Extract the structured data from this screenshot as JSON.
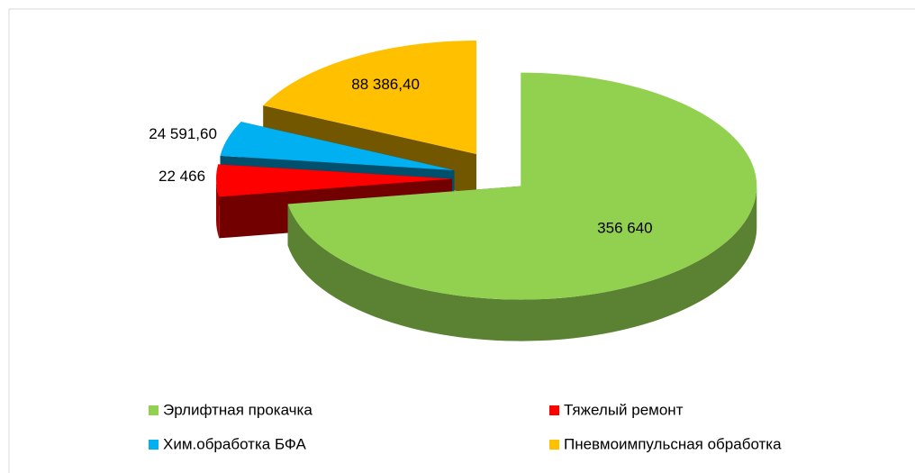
{
  "chart_data": {
    "type": "pie",
    "categories": [
      "Эрлифтная прокачка",
      "Тяжелый ремонт",
      "Хим.обработка БФА",
      "Пневмоимпульсная обработка"
    ],
    "values": [
      356640,
      22466,
      24591.6,
      88386.4
    ],
    "value_labels": [
      "356 640",
      "22 466",
      "24 591,60",
      "88 386,40"
    ],
    "colors": [
      "#92d050",
      "#ff0000",
      "#00b0f0",
      "#ffc000"
    ],
    "legend": "bottom"
  }
}
